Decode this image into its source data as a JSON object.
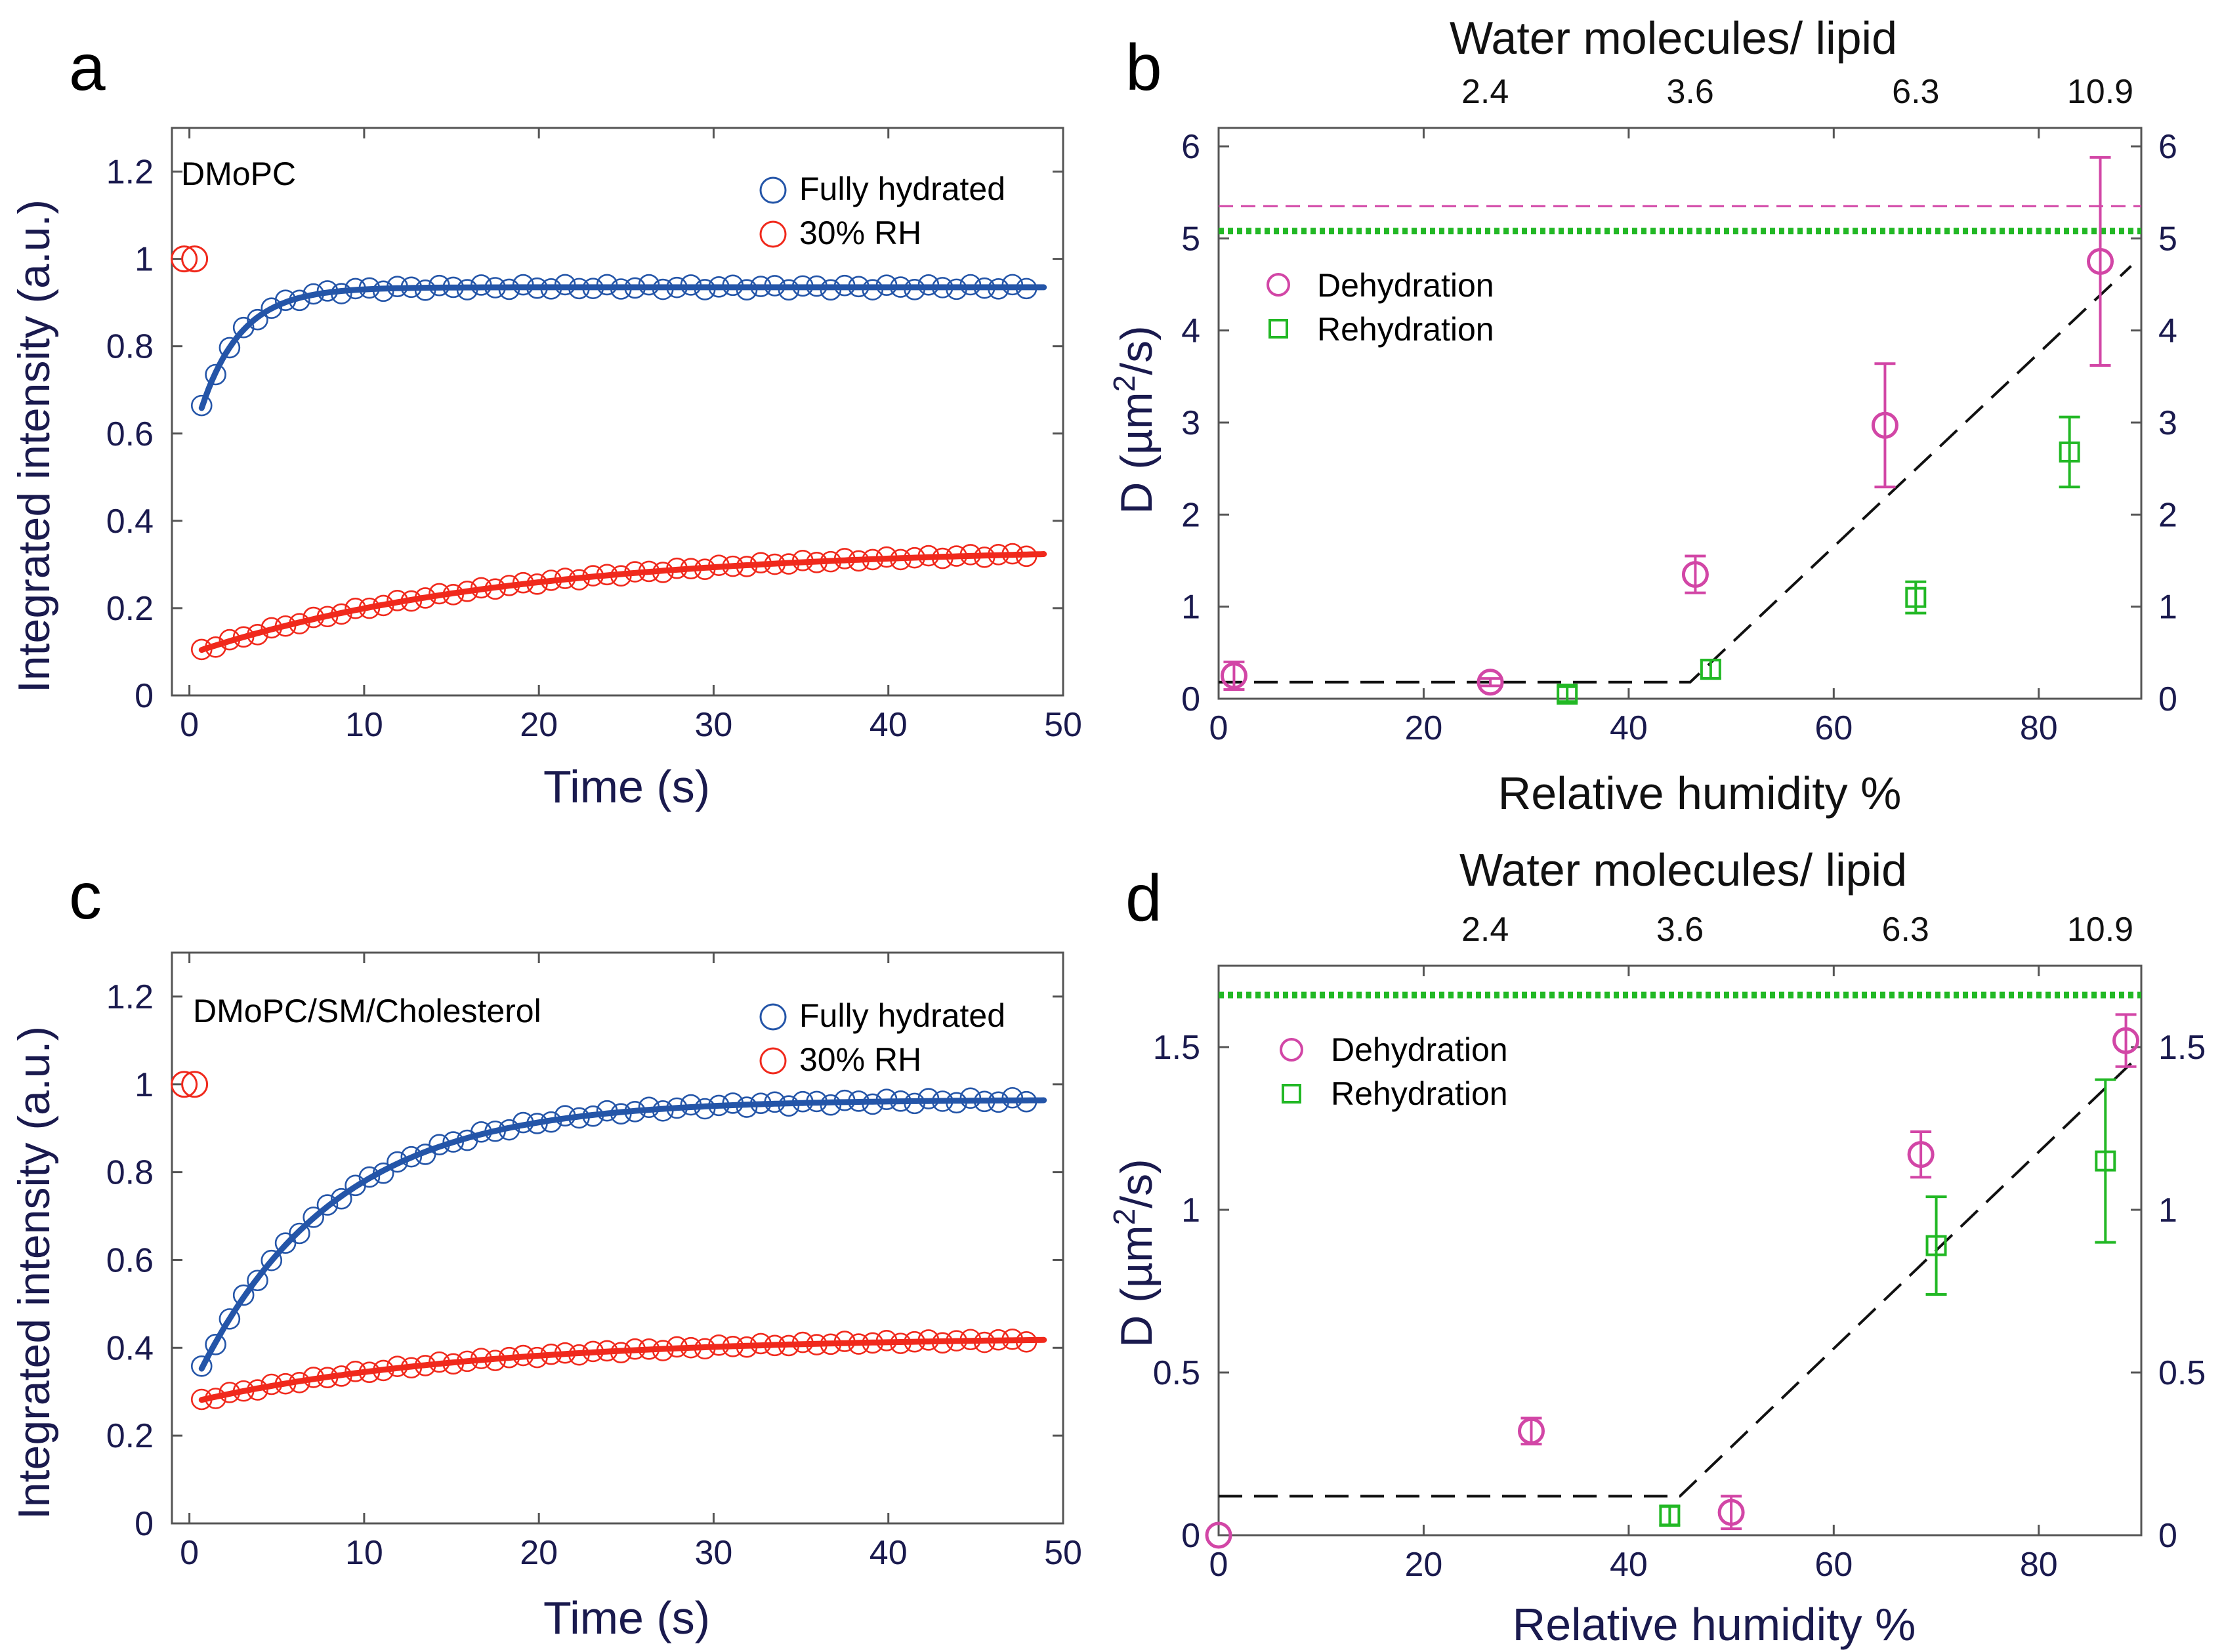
{
  "colors": {
    "axis_label": "#1a1a4e",
    "blue": "#2455a8",
    "red": "#f0291c",
    "magenta": "#d246a6",
    "green": "#22b825",
    "black": "#111111"
  },
  "chart_data": [
    {
      "panel": "a",
      "type": "scatter",
      "annotation": "DMoPC",
      "xlabel": "Time (s)",
      "ylabel": "Integrated intensity (a.u.)",
      "xlim": [
        -1,
        50
      ],
      "ylim": [
        0,
        1.3
      ],
      "xticks": [
        0,
        10,
        20,
        30,
        40,
        50
      ],
      "yticks": [
        0,
        0.2,
        0.4,
        0.6,
        0.8,
        1,
        1.2
      ],
      "ytick_labels": [
        "0",
        "0.2",
        "0.4",
        "0.6",
        "0.8",
        "1",
        "1.2"
      ],
      "legend": "top-right",
      "prebleach": {
        "x": [
          -0.3,
          0.3
        ],
        "y": [
          1.0,
          1.0
        ]
      },
      "series": [
        {
          "name": "Fully hydrated",
          "color": "#2455a8",
          "fit": {
            "a": 0.935,
            "b": 0.375,
            "tau": 2.3
          }
        },
        {
          "name": "30% RH",
          "color": "#f0291c",
          "fit": {
            "a": 0.34,
            "b": 0.245,
            "tau": 18.0
          }
        }
      ]
    },
    {
      "panel": "b",
      "type": "scatter",
      "title": "Water molecules/ lipid",
      "xlabel": "Relative humidity %",
      "ylabel_main": "D (µm",
      "ylabel_sup": "2",
      "ylabel_end": "/s)",
      "xlim": [
        0,
        90
      ],
      "ylim": [
        0,
        6.2
      ],
      "xticks": [
        0,
        20,
        40,
        60,
        80
      ],
      "yticks": [
        0,
        1,
        2,
        3,
        4,
        5,
        6
      ],
      "top_ticks": {
        "positions": [
          26,
          46,
          68,
          86
        ],
        "labels": [
          "2.4",
          "3.6",
          "6.3",
          "10.9"
        ]
      },
      "legend": "upper-left",
      "hline_dashed": 5.35,
      "hline_dotted": 5.08,
      "fit_line": {
        "x": [
          0,
          46,
          89
        ],
        "y": [
          0.18,
          0.18,
          4.7
        ]
      },
      "series": [
        {
          "name": "Dehydration",
          "marker": "circle",
          "color": "#d246a6",
          "x": [
            1.5,
            26.5,
            46.5,
            65,
            86
          ],
          "y": [
            0.25,
            0.18,
            1.35,
            2.97,
            4.75
          ],
          "err": [
            0.15,
            0.04,
            0.2,
            0.67,
            1.13
          ]
        },
        {
          "name": "Rehydration",
          "marker": "square",
          "color": "#22b825",
          "x": [
            34,
            48,
            68,
            83
          ],
          "y": [
            0.05,
            0.32,
            1.1,
            2.68
          ],
          "err": [
            0.08,
            0.1,
            0.17,
            0.38
          ]
        }
      ]
    },
    {
      "panel": "c",
      "type": "scatter",
      "annotation": "DMoPC/SM/Cholesterol",
      "xlabel": "Time (s)",
      "ylabel": "Integrated intensity (a.u.)",
      "xlim": [
        -1,
        50
      ],
      "ylim": [
        0,
        1.3
      ],
      "xticks": [
        0,
        10,
        20,
        30,
        40,
        50
      ],
      "yticks": [
        0,
        0.2,
        0.4,
        0.6,
        0.8,
        1,
        1.2
      ],
      "ytick_labels": [
        "0",
        "0.2",
        "0.4",
        "0.6",
        "0.8",
        "1",
        "1.2"
      ],
      "legend": "top-right",
      "prebleach": {
        "x": [
          -0.3,
          0.3
        ],
        "y": [
          1.0,
          1.0
        ]
      },
      "series": [
        {
          "name": "Fully hydrated",
          "color": "#2455a8",
          "fit": {
            "a": 0.965,
            "b": 0.67,
            "tau": 7.8
          }
        },
        {
          "name": "30% RH",
          "color": "#f0291c",
          "fit": {
            "a": 0.425,
            "b": 0.15,
            "tau": 16.0
          }
        }
      ]
    },
    {
      "panel": "d",
      "type": "scatter",
      "title": "Water molecules/ lipid",
      "xlabel": "Relative humidity %",
      "ylabel_main": "D (µm",
      "ylabel_sup": "2",
      "ylabel_end": "/s)",
      "xlim": [
        0,
        90
      ],
      "ylim": [
        0,
        1.75
      ],
      "xticks": [
        0,
        20,
        40,
        60,
        80
      ],
      "yticks": [
        0,
        0.5,
        1,
        1.5
      ],
      "ytick_labels": [
        "0",
        "0.5",
        "1",
        "1.5"
      ],
      "top_ticks": {
        "positions": [
          26,
          45,
          67,
          86
        ],
        "labels": [
          "2.4",
          "3.6",
          "6.3",
          "10.9"
        ]
      },
      "legend": "upper-left",
      "hline_dotted": 1.66,
      "fit_line": {
        "x": [
          0,
          45,
          89
        ],
        "y": [
          0.12,
          0.12,
          1.45
        ]
      },
      "series": [
        {
          "name": "Dehydration",
          "marker": "circle",
          "color": "#d246a6",
          "x": [
            0,
            30.5,
            50,
            68.5,
            88.5
          ],
          "y": [
            0.0,
            0.32,
            0.07,
            1.17,
            1.52
          ],
          "err": [
            0,
            0.04,
            0.05,
            0.07,
            0.08
          ]
        },
        {
          "name": "Rehydration",
          "marker": "square",
          "color": "#22b825",
          "x": [
            44,
            70,
            86.5
          ],
          "y": [
            0.06,
            0.89,
            1.15
          ],
          "err": [
            0.03,
            0.15,
            0.25
          ]
        }
      ]
    }
  ],
  "panel_labels": [
    "a",
    "b",
    "c",
    "d"
  ]
}
